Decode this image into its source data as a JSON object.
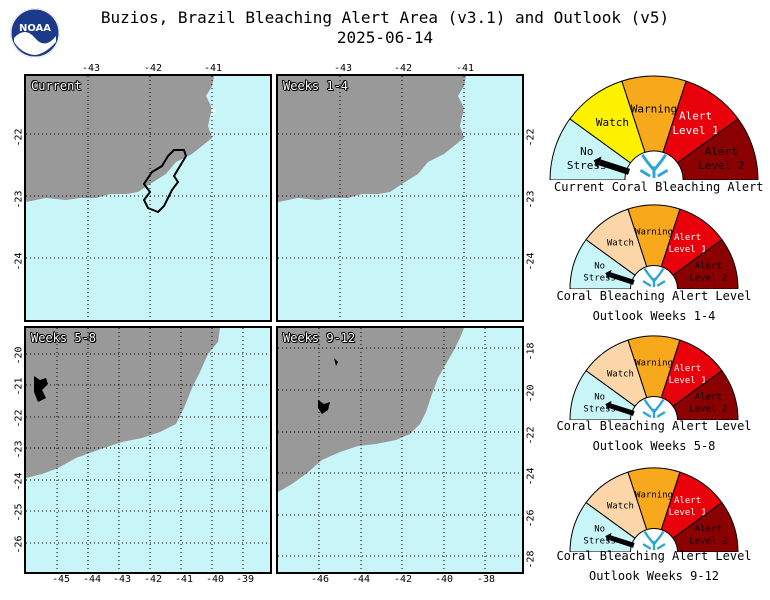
{
  "title": {
    "line1": "Buzios, Brazil Bleaching Alert Area (v3.1) and Outlook (v5)",
    "line2": "2025-06-14"
  },
  "logo": {
    "text": "NOAA",
    "icon": "noaa-logo-icon"
  },
  "panels": [
    {
      "label": "Current"
    },
    {
      "label": "Weeks 1-4"
    },
    {
      "label": "Weeks 5-8"
    },
    {
      "label": "Weeks 9-12"
    }
  ],
  "top_axis": {
    "labels": [
      "-43",
      "-42",
      "-41"
    ]
  },
  "top_right_axis": {
    "labels": [
      "-22",
      "-23",
      "-24"
    ]
  },
  "top_left_axis": {
    "labels": [
      "-22",
      "-23",
      "-24"
    ]
  },
  "bottom_left_axis": {
    "x_labels": [
      "-45",
      "-44",
      "-43",
      "-42",
      "-41",
      "-40",
      "-39"
    ],
    "y_labels": [
      "-20",
      "-21",
      "-22",
      "-23",
      "-24",
      "-25",
      "-26"
    ]
  },
  "bottom_right_axis": {
    "x_labels": [
      "-46",
      "-44",
      "-42",
      "-40",
      "-38"
    ],
    "y_labels": [
      "-18",
      "-20",
      "-22",
      "-24",
      "-26",
      "-28"
    ]
  },
  "gauges": [
    {
      "caption1": "Current Coral Bleaching Alert Level",
      "caption2": "",
      "level": "No Stress"
    },
    {
      "caption1": "Coral Bleaching Alert Level",
      "caption2": "Outlook Weeks 1-4",
      "level": "No Stress"
    },
    {
      "caption1": "Coral Bleaching Alert Level",
      "caption2": "Outlook Weeks 5-8",
      "level": "No Stress"
    },
    {
      "caption1": "Coral Bleaching Alert Level",
      "caption2": "Outlook Weeks 9-12",
      "level": "No Stress"
    }
  ],
  "gauge_segments": [
    {
      "label1": "No",
      "label2": "Stress",
      "color": "#c8f6f8"
    },
    {
      "label1": "Watch",
      "label2": "",
      "color": "#fff200"
    },
    {
      "label1": "Warning",
      "label2": "",
      "color": "#f7a81b"
    },
    {
      "label1": "Alert",
      "label2": "Level 1",
      "color": "#e8000b"
    },
    {
      "label1": "Alert",
      "label2": "Level 2",
      "color": "#8b0000"
    }
  ],
  "outlook_watch_color": "#fcd5a8",
  "colors": {
    "ocean": "#c8f6f8",
    "land": "#999999",
    "alert_outline": "#000000"
  }
}
